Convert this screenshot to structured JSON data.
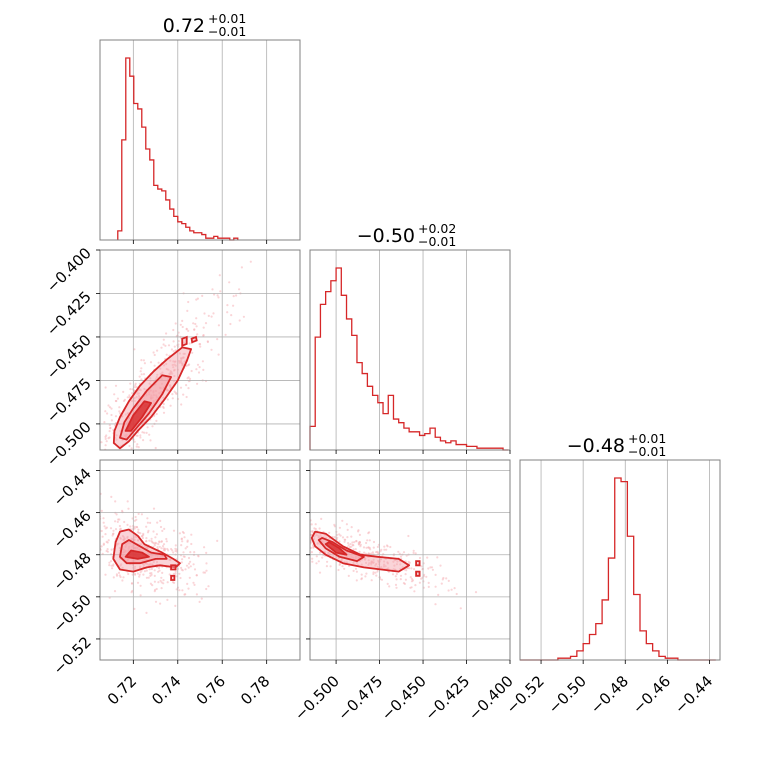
{
  "style": {
    "accent_color": "#d62728",
    "fill_color": "#f4a0a8",
    "point_color": "#f6b3b8",
    "grid_color": "#b0b0b0",
    "frame_color": "#808080"
  },
  "chart_data": {
    "type": "corner",
    "parameters": [
      "",
      "",
      ""
    ],
    "titles": [
      {
        "main": "0.72",
        "plus": "+0.01",
        "minus": "−0.01",
        "median": 0.72
      },
      {
        "main": "−0.50",
        "plus": "+0.02",
        "minus": "−0.01",
        "median": -0.5
      },
      {
        "main": "−0.48",
        "plus": "+0.01",
        "minus": "−0.01",
        "median": -0.48
      }
    ],
    "ranges": [
      [
        0.705,
        0.795
      ],
      [
        -0.515,
        -0.4
      ],
      [
        -0.53,
        -0.435
      ]
    ],
    "ticks": [
      {
        "values": [
          0.72,
          0.74,
          0.76,
          0.78
        ],
        "labels": [
          "0.72",
          "0.74",
          "0.76",
          "0.78"
        ]
      },
      {
        "values": [
          -0.5,
          -0.475,
          -0.45,
          -0.425,
          -0.4
        ],
        "labels": [
          "−0.500",
          "−0.475",
          "−0.450",
          "−0.425",
          "−0.400"
        ]
      },
      {
        "values": [
          -0.52,
          -0.5,
          -0.48,
          -0.46,
          -0.44
        ],
        "labels": [
          "−0.52",
          "−0.50",
          "−0.48",
          "−0.46",
          "−0.44"
        ]
      }
    ],
    "histograms": [
      {
        "param": 0,
        "bin_edges": [
          0.713,
          0.7148,
          0.7166,
          0.7184,
          0.7202,
          0.722,
          0.7238,
          0.7256,
          0.7274,
          0.7292,
          0.731,
          0.7328,
          0.7346,
          0.7364,
          0.7382,
          0.74,
          0.7418,
          0.7436,
          0.7454,
          0.7472,
          0.749,
          0.7508,
          0.7526,
          0.7544,
          0.7562,
          0.758,
          0.7598,
          0.7616,
          0.7634,
          0.7652,
          0.767
        ],
        "counts": [
          5,
          55,
          100,
          90,
          75,
          72,
          62,
          50,
          44,
          30,
          28,
          27,
          22,
          17,
          13,
          10,
          9,
          7,
          5,
          4,
          4,
          3,
          1,
          1,
          2,
          1,
          1,
          1,
          0,
          1
        ]
      },
      {
        "param": 1,
        "bin_edges": [
          -0.515,
          -0.512,
          -0.509,
          -0.506,
          -0.503,
          -0.5,
          -0.497,
          -0.494,
          -0.491,
          -0.488,
          -0.485,
          -0.482,
          -0.479,
          -0.476,
          -0.473,
          -0.47,
          -0.467,
          -0.464,
          -0.461,
          -0.458,
          -0.455,
          -0.452,
          -0.449,
          -0.446,
          -0.443,
          -0.44,
          -0.437,
          -0.434,
          -0.431,
          -0.428,
          -0.425,
          -0.422,
          -0.419,
          -0.416,
          -0.413,
          -0.41,
          -0.407,
          -0.404,
          -0.401
        ],
        "counts": [
          13,
          62,
          80,
          87,
          93,
          100,
          85,
          72,
          63,
          48,
          42,
          35,
          30,
          26,
          20,
          30,
          17,
          15,
          12,
          10,
          10,
          8,
          9,
          12,
          7,
          5,
          4,
          5,
          3,
          3,
          2,
          2,
          1,
          1,
          1,
          1,
          1,
          0
        ]
      },
      {
        "param": 2,
        "bin_edges": [
          -0.53,
          -0.527,
          -0.524,
          -0.521,
          -0.518,
          -0.515,
          -0.512,
          -0.509,
          -0.506,
          -0.503,
          -0.5,
          -0.497,
          -0.494,
          -0.491,
          -0.488,
          -0.485,
          -0.482,
          -0.479,
          -0.476,
          -0.473,
          -0.47,
          -0.467,
          -0.464,
          -0.461,
          -0.458,
          -0.455,
          -0.452,
          -0.449,
          -0.446,
          -0.443,
          -0.44,
          -0.437
        ],
        "counts": [
          0,
          0,
          0,
          0,
          0,
          0,
          1,
          1,
          2,
          5,
          9,
          14,
          20,
          33,
          56,
          100,
          98,
          68,
          36,
          16,
          9,
          5,
          2,
          1,
          1,
          0,
          0,
          0,
          0,
          0,
          0
        ]
      }
    ],
    "pairs": [
      {
        "x_param": 0,
        "y_param": 1,
        "contours": [
          [
            [
              0.7112,
              -0.511
            ],
            [
              0.714,
              -0.514
            ],
            [
              0.718,
              -0.51
            ],
            [
              0.722,
              -0.504
            ],
            [
              0.728,
              -0.496
            ],
            [
              0.734,
              -0.486
            ],
            [
              0.74,
              -0.475
            ],
            [
              0.744,
              -0.464
            ],
            [
              0.746,
              -0.457
            ],
            [
              0.742,
              -0.456
            ],
            [
              0.735,
              -0.463
            ],
            [
              0.729,
              -0.47
            ],
            [
              0.723,
              -0.478
            ],
            [
              0.718,
              -0.487
            ],
            [
              0.714,
              -0.496
            ],
            [
              0.7115,
              -0.504
            ]
          ],
          [
            [
              0.714,
              -0.508
            ],
            [
              0.717,
              -0.509
            ],
            [
              0.721,
              -0.503
            ],
            [
              0.727,
              -0.494
            ],
            [
              0.733,
              -0.483
            ],
            [
              0.737,
              -0.473
            ],
            [
              0.733,
              -0.472
            ],
            [
              0.726,
              -0.481
            ],
            [
              0.72,
              -0.491
            ],
            [
              0.716,
              -0.499
            ]
          ],
          [
            [
              0.7165,
              -0.504
            ],
            [
              0.719,
              -0.504
            ],
            [
              0.724,
              -0.496
            ],
            [
              0.728,
              -0.488
            ],
            [
              0.725,
              -0.487
            ],
            [
              0.72,
              -0.495
            ]
          ]
        ],
        "islands": [
          [
            [
              0.742,
              -0.455
            ],
            [
              0.744,
              -0.454
            ],
            [
              0.744,
              -0.45
            ],
            [
              0.742,
              -0.451
            ]
          ],
          [
            [
              0.7465,
              -0.453
            ],
            [
              0.7485,
              -0.452
            ],
            [
              0.7482,
              -0.45
            ],
            [
              0.7462,
              -0.451
            ]
          ]
        ]
      },
      {
        "x_param": 0,
        "y_param": 2,
        "contours": [
          [
            [
              0.711,
              -0.482
            ],
            [
              0.714,
              -0.487
            ],
            [
              0.72,
              -0.488
            ],
            [
              0.726,
              -0.486
            ],
            [
              0.732,
              -0.485
            ],
            [
              0.739,
              -0.486
            ],
            [
              0.741,
              -0.484
            ],
            [
              0.738,
              -0.482
            ],
            [
              0.733,
              -0.479
            ],
            [
              0.729,
              -0.477
            ],
            [
              0.725,
              -0.475
            ],
            [
              0.722,
              -0.471
            ],
            [
              0.718,
              -0.468
            ],
            [
              0.714,
              -0.469
            ],
            [
              0.712,
              -0.474
            ]
          ],
          [
            [
              0.714,
              -0.481
            ],
            [
              0.717,
              -0.484
            ],
            [
              0.723,
              -0.484
            ],
            [
              0.73,
              -0.482
            ],
            [
              0.735,
              -0.482
            ],
            [
              0.734,
              -0.48
            ],
            [
              0.728,
              -0.479
            ],
            [
              0.723,
              -0.476
            ],
            [
              0.718,
              -0.473
            ],
            [
              0.715,
              -0.475
            ]
          ],
          [
            [
              0.7165,
              -0.481
            ],
            [
              0.722,
              -0.482
            ],
            [
              0.727,
              -0.481
            ],
            [
              0.724,
              -0.479
            ],
            [
              0.719,
              -0.478
            ]
          ]
        ],
        "islands": [
          [
            [
              0.737,
              -0.487
            ],
            [
              0.739,
              -0.487
            ],
            [
              0.739,
              -0.485
            ],
            [
              0.737,
              -0.485
            ]
          ],
          [
            [
              0.737,
              -0.492
            ],
            [
              0.7385,
              -0.492
            ],
            [
              0.7385,
              -0.49
            ],
            [
              0.737,
              -0.49
            ]
          ]
        ]
      },
      {
        "x_param": 1,
        "y_param": 2,
        "contours": [
          [
            [
              -0.514,
              -0.472
            ],
            [
              -0.512,
              -0.476
            ],
            [
              -0.506,
              -0.48
            ],
            [
              -0.496,
              -0.484
            ],
            [
              -0.484,
              -0.486
            ],
            [
              -0.474,
              -0.487
            ],
            [
              -0.464,
              -0.488
            ],
            [
              -0.458,
              -0.485
            ],
            [
              -0.464,
              -0.482
            ],
            [
              -0.476,
              -0.481
            ],
            [
              -0.486,
              -0.48
            ],
            [
              -0.496,
              -0.476
            ],
            [
              -0.506,
              -0.47
            ],
            [
              -0.512,
              -0.469
            ]
          ],
          [
            [
              -0.51,
              -0.473
            ],
            [
              -0.506,
              -0.477
            ],
            [
              -0.498,
              -0.481
            ],
            [
              -0.488,
              -0.483
            ],
            [
              -0.484,
              -0.481
            ],
            [
              -0.494,
              -0.478
            ],
            [
              -0.502,
              -0.474
            ],
            [
              -0.508,
              -0.472
            ]
          ],
          [
            [
              -0.506,
              -0.475
            ],
            [
              -0.5,
              -0.479
            ],
            [
              -0.494,
              -0.48
            ],
            [
              -0.498,
              -0.477
            ],
            [
              -0.504,
              -0.474
            ]
          ]
        ],
        "islands": [
          [
            [
              -0.454,
              -0.485
            ],
            [
              -0.452,
              -0.485
            ],
            [
              -0.452,
              -0.483
            ],
            [
              -0.454,
              -0.483
            ]
          ],
          [
            [
              -0.454,
              -0.49
            ],
            [
              -0.452,
              -0.49
            ],
            [
              -0.452,
              -0.488
            ],
            [
              -0.454,
              -0.488
            ]
          ]
        ]
      }
    ],
    "samples_note": "faint posterior samples scattered around contours"
  }
}
